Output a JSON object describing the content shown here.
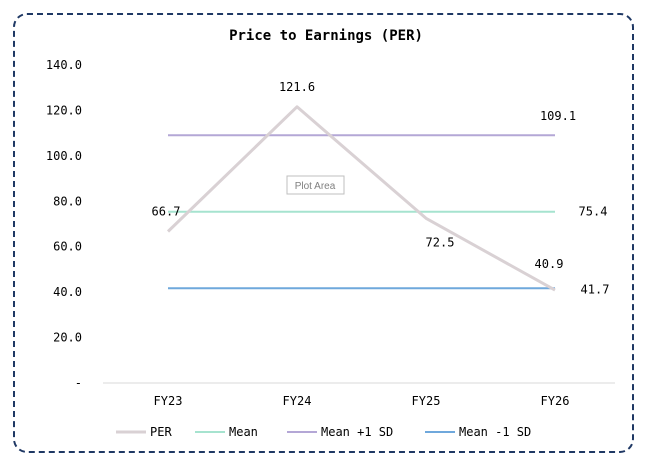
{
  "chart_data": {
    "type": "line",
    "title": "Price to Earnings (PER)",
    "categories": [
      "FY23",
      "FY24",
      "FY25",
      "FY26"
    ],
    "ylim": [
      0,
      140
    ],
    "ytick_labels": [
      "-",
      "20.0",
      "40.0",
      "60.0",
      "80.0",
      "100.0",
      "120.0",
      "140.0"
    ],
    "ytick_values": [
      0,
      20,
      40,
      60,
      80,
      100,
      120,
      140
    ],
    "grid": false,
    "legend_position": "bottom",
    "series": [
      {
        "name": "PER",
        "values": [
          66.7,
          121.6,
          72.5,
          40.9
        ],
        "color": "#d9d1d4",
        "labels": [
          "66.7",
          "121.6",
          "72.5",
          "40.9"
        ]
      },
      {
        "name": "Mean",
        "values": [
          75.4,
          75.4,
          75.4,
          75.4
        ],
        "color": "#a6e3cf",
        "end_label": "75.4"
      },
      {
        "name": "Mean +1 SD",
        "values": [
          109.1,
          109.1,
          109.1,
          109.1
        ],
        "color": "#b4a7d6",
        "end_label": "109.1"
      },
      {
        "name": "Mean -1 SD",
        "values": [
          41.7,
          41.7,
          41.7,
          41.7
        ],
        "color": "#6fa8dc",
        "end_label": "41.7"
      }
    ]
  },
  "tooltip": {
    "text": "Plot Area"
  }
}
